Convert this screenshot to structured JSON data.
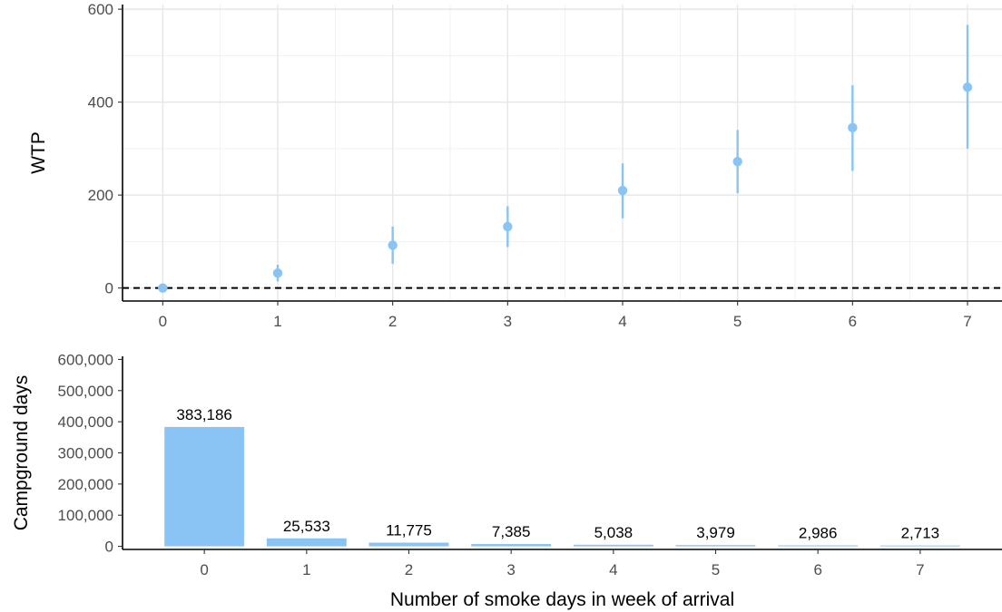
{
  "chart_data": [
    {
      "type": "scatter",
      "subtype": "point-range",
      "x": [
        0,
        1,
        2,
        3,
        4,
        5,
        6,
        7
      ],
      "y": [
        0,
        32,
        92,
        132,
        210,
        272,
        345,
        432
      ],
      "lower": [
        0,
        14,
        52,
        88,
        150,
        204,
        252,
        300
      ],
      "upper": [
        0,
        50,
        132,
        176,
        268,
        340,
        436,
        566
      ],
      "x_ticks": [
        "0",
        "1",
        "2",
        "3",
        "4",
        "5",
        "6",
        "7"
      ],
      "y_ticks": [
        "0",
        "200",
        "400",
        "600"
      ],
      "xlabel": "",
      "ylabel": "WTP",
      "xlim": [
        -0.35,
        7.3
      ],
      "ylim": [
        -28,
        610
      ],
      "reference_line": {
        "y": 0,
        "style": "dashed",
        "color": "#000000"
      },
      "grid": true,
      "color": "#89c4f4"
    },
    {
      "type": "bar",
      "categories": [
        "0",
        "1",
        "2",
        "3",
        "4",
        "5",
        "6",
        "7"
      ],
      "values": [
        383186,
        25533,
        11775,
        7385,
        5038,
        3979,
        2986,
        2713
      ],
      "value_labels": [
        "383,186",
        "25,533",
        "11,775",
        "7,385",
        "5,038",
        "3,979",
        "2,986",
        "2,713"
      ],
      "y_ticks": [
        "0",
        "100,000",
        "200,000",
        "300,000",
        "400,000",
        "500,000",
        "600,000"
      ],
      "xlabel": "Number of smoke days in week of arrival",
      "ylabel": "Campground days",
      "ylim": [
        -10000,
        610000
      ],
      "grid": false,
      "color": "#89c4f4"
    }
  ]
}
